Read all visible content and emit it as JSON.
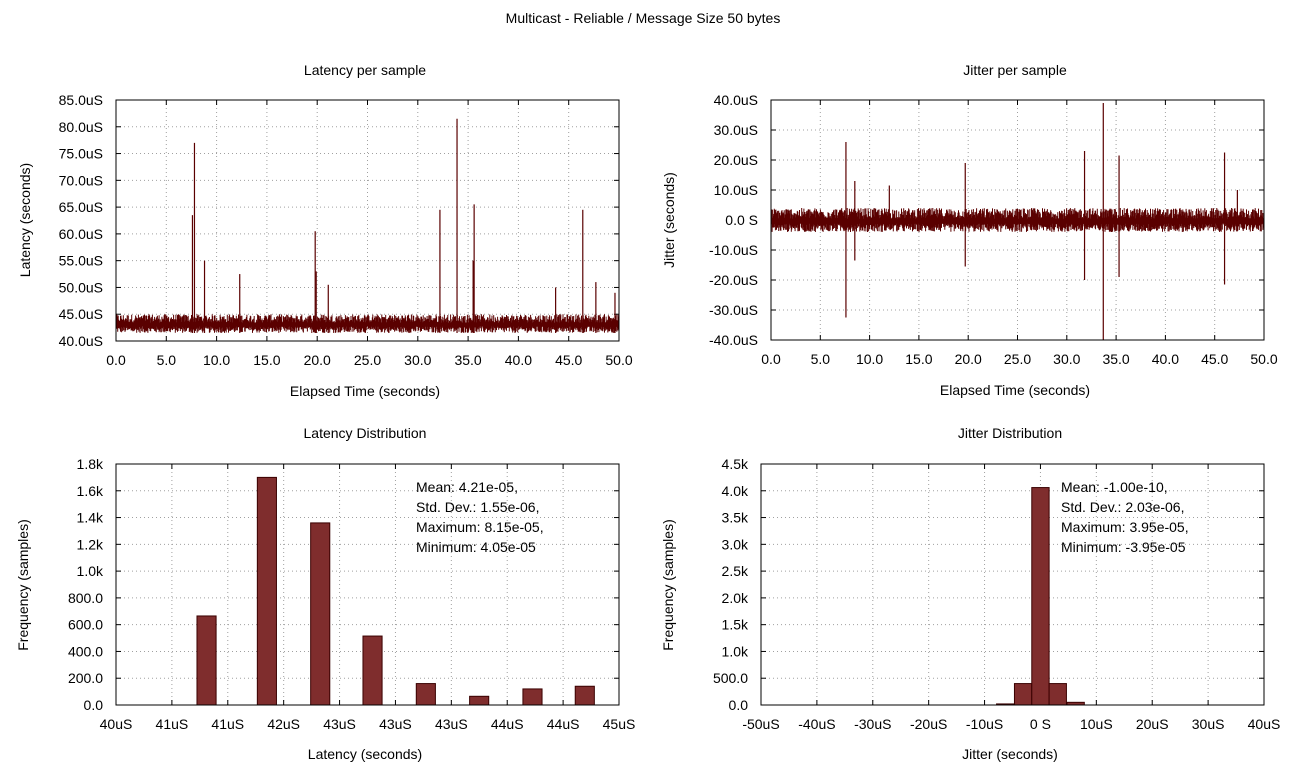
{
  "page_title": "Multicast -  Reliable / Message Size 50 bytes",
  "colors": {
    "series": "#5a0000",
    "bar_fill": "#7f2d2d",
    "bar_stroke": "#3a0000",
    "grid": "#a0a0a0"
  },
  "chart_data": [
    {
      "id": "latency_sample",
      "type": "line",
      "title": "Latency per sample",
      "xlabel": "Elapsed Time (seconds)",
      "ylabel": "Latency (seconds)",
      "xlim": [
        0,
        50
      ],
      "ylim": [
        40,
        85
      ],
      "x_ticks": [
        "0.0",
        "5.0",
        "10.0",
        "15.0",
        "20.0",
        "25.0",
        "30.0",
        "35.0",
        "40.0",
        "45.0",
        "50.0"
      ],
      "y_ticks": [
        "40.0uS",
        "45.0uS",
        "50.0uS",
        "55.0uS",
        "60.0uS",
        "65.0uS",
        "70.0uS",
        "75.0uS",
        "80.0uS",
        "85.0uS"
      ],
      "grid": true,
      "series": [
        {
          "baseline_band": [
            41.5,
            45
          ],
          "spikes": [
            [
              7.6,
              63.5
            ],
            [
              7.8,
              77
            ],
            [
              8.8,
              55
            ],
            [
              12.3,
              52.5
            ],
            [
              19.8,
              60.5
            ],
            [
              19.9,
              53
            ],
            [
              21.1,
              50.5
            ],
            [
              32.2,
              64.5
            ],
            [
              33.9,
              81.5
            ],
            [
              35.6,
              65.5
            ],
            [
              35.5,
              55
            ],
            [
              43.7,
              50
            ],
            [
              46.4,
              64.5
            ],
            [
              47.7,
              51
            ],
            [
              49.6,
              49
            ]
          ]
        }
      ]
    },
    {
      "id": "jitter_sample",
      "type": "line",
      "title": "Jitter per sample",
      "xlabel": "Elapsed Time (seconds)",
      "ylabel": "Jitter (seconds)",
      "xlim": [
        0,
        50
      ],
      "ylim": [
        -40,
        40
      ],
      "x_ticks": [
        "0.0",
        "5.0",
        "10.0",
        "15.0",
        "20.0",
        "25.0",
        "30.0",
        "35.0",
        "40.0",
        "45.0",
        "50.0"
      ],
      "y_ticks": [
        "-40.0uS",
        "-30.0uS",
        "-20.0uS",
        "-10.0uS",
        "0.0 S",
        "10.0uS",
        "20.0uS",
        "30.0uS",
        "40.0uS"
      ],
      "grid": true,
      "series": [
        {
          "baseline_band": [
            -4,
            4
          ],
          "spikes": [
            [
              7.6,
              26
            ],
            [
              7.6,
              -32.5
            ],
            [
              8.5,
              13
            ],
            [
              8.5,
              -13.5
            ],
            [
              12.0,
              11.5
            ],
            [
              19.7,
              19
            ],
            [
              19.7,
              -15.5
            ],
            [
              31.8,
              23
            ],
            [
              31.8,
              -20
            ],
            [
              33.7,
              39
            ],
            [
              33.7,
              -40
            ],
            [
              35.3,
              21.5
            ],
            [
              35.3,
              -19
            ],
            [
              46.0,
              22.5
            ],
            [
              46.0,
              -21.5
            ],
            [
              47.3,
              10
            ]
          ]
        }
      ]
    },
    {
      "id": "latency_dist",
      "type": "bar",
      "title": "Latency Distribution",
      "xlabel": "Latency (seconds)",
      "ylabel": "Frequency (samples)",
      "x_ticks": [
        "40uS",
        "41uS",
        "41uS",
        "42uS",
        "43uS",
        "43uS",
        "43uS",
        "44uS",
        "44uS",
        "45uS"
      ],
      "y_ticks": [
        "0.0",
        "200.0",
        "400.0",
        "600.0",
        "800.0",
        "1.0k",
        "1.2k",
        "1.4k",
        "1.6k",
        "1.8k"
      ],
      "ylim": [
        0,
        1800
      ],
      "grid": true,
      "bars": [
        {
          "x": 40.9,
          "value": 665
        },
        {
          "x": 41.5,
          "value": 1700
        },
        {
          "x": 42.03,
          "value": 1360
        },
        {
          "x": 42.55,
          "value": 515
        },
        {
          "x": 43.08,
          "value": 160
        },
        {
          "x": 43.61,
          "value": 65
        },
        {
          "x": 44.14,
          "value": 120
        },
        {
          "x": 44.66,
          "value": 140
        }
      ],
      "annotation": [
        "Mean: 4.21e-05,",
        "Std. Dev.: 1.55e-06,",
        "Maximum: 8.15e-05,",
        "Minimum: 4.05e-05"
      ]
    },
    {
      "id": "jitter_dist",
      "type": "bar",
      "title": "Jitter Distribution",
      "xlabel": "Jitter (seconds)",
      "ylabel": "Frequency (samples)",
      "x_ticks": [
        "-50uS",
        "-40uS",
        "-30uS",
        "-20uS",
        "-10uS",
        "0 S",
        "10uS",
        "20uS",
        "30uS",
        "40uS"
      ],
      "y_ticks": [
        "0.0",
        "500.0",
        "1.0k",
        "1.5k",
        "2.0k",
        "2.5k",
        "3.0k",
        "3.5k",
        "4.0k",
        "4.5k"
      ],
      "ylim": [
        0,
        4500
      ],
      "grid": true,
      "bars": [
        {
          "x": -6.3,
          "value": 20
        },
        {
          "x": -3.1,
          "value": 400
        },
        {
          "x": 0.0,
          "value": 4060
        },
        {
          "x": 3.1,
          "value": 400
        },
        {
          "x": 6.3,
          "value": 50
        }
      ],
      "annotation": [
        "Mean: -1.00e-10,",
        "Std. Dev.: 2.03e-06,",
        "Maximum: 3.95e-05,",
        "Minimum: -3.95e-05"
      ]
    }
  ]
}
